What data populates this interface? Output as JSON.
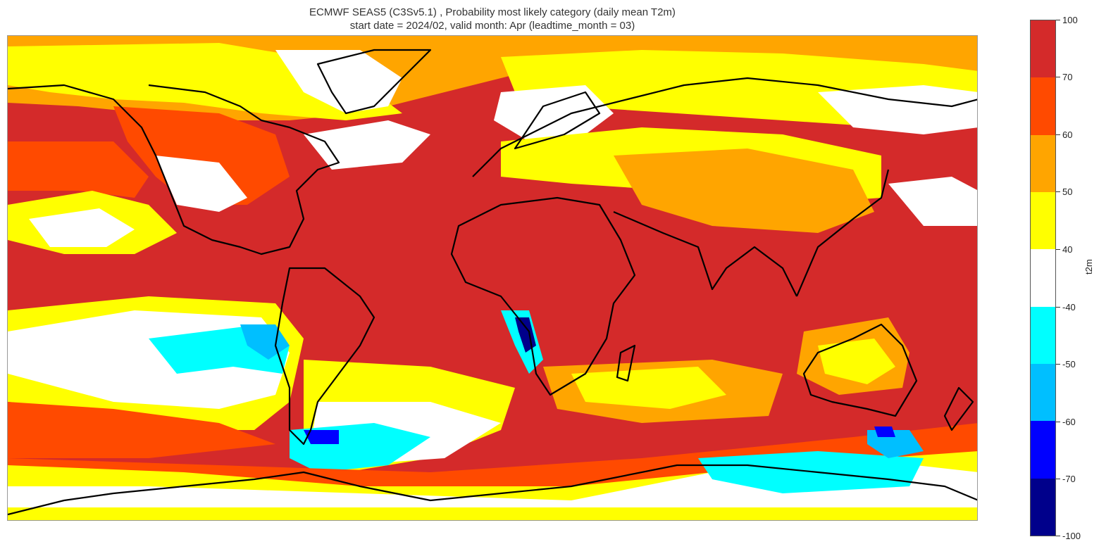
{
  "title": {
    "line1": "ECMWF SEAS5 (C3Sv5.1) , Probability most likely category (daily mean T2m)",
    "line2": "start date = 2024/02, valid month: Apr (leadtime_month = 03)"
  },
  "colorbar": {
    "label": "t2m",
    "ticks": [
      "100",
      "70",
      "60",
      "50",
      "40",
      "-40",
      "-50",
      "-60",
      "-70",
      "-100"
    ],
    "colors": [
      "#d42a2a",
      "#ff4a00",
      "#ffa500",
      "#ffff00",
      "#ffffff",
      "#00ffff",
      "#00bfff",
      "#0000ff",
      "#00008b"
    ]
  },
  "map_colors": {
    "ocean_base": "#d42a2a",
    "orange_red": "#ff4a00",
    "orange": "#ffa500",
    "yellow": "#ffff00",
    "white": "#ffffff",
    "cyan": "#00ffff",
    "sky_blue": "#00bfff",
    "blue": "#0000ff",
    "navy": "#00008b",
    "coastline": "#000000"
  }
}
